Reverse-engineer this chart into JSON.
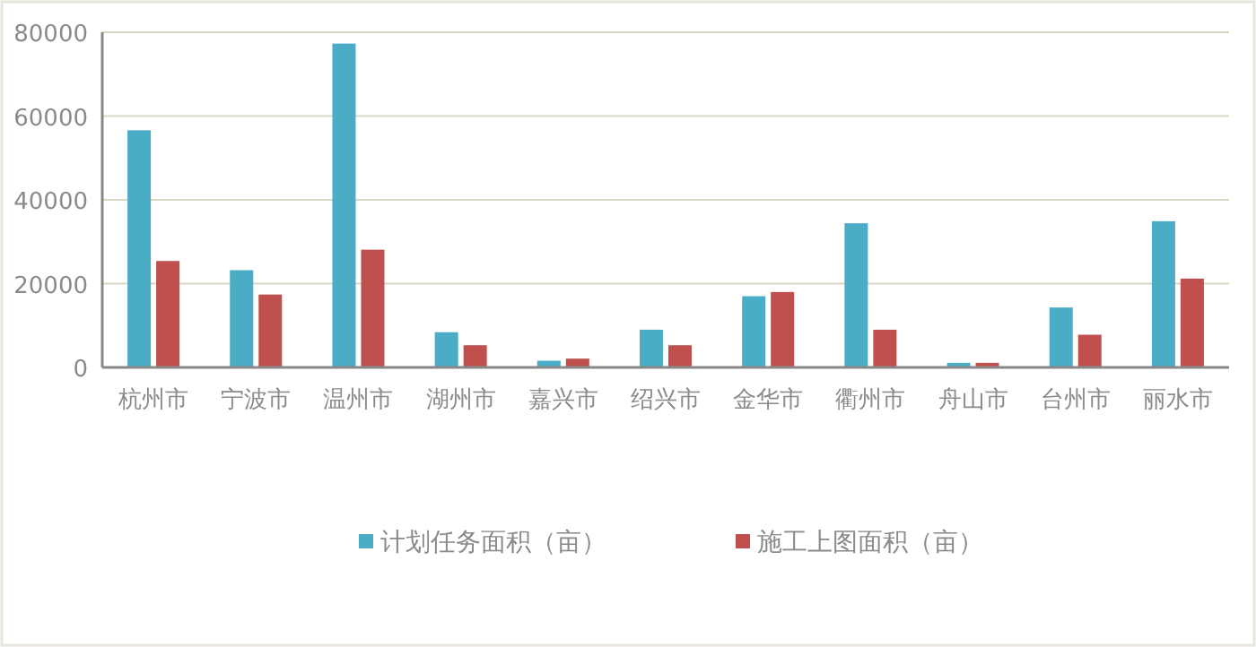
{
  "chart_data": {
    "type": "bar",
    "categories": [
      "杭州市",
      "宁波市",
      "温州市",
      "湖州市",
      "嘉兴市",
      "绍兴市",
      "金华市",
      "衢州市",
      "舟山市",
      "台州市",
      "丽水市"
    ],
    "series": [
      {
        "name": "计划任务面积（亩）",
        "color": "#4bacc6",
        "values": [
          56600,
          23200,
          77300,
          8400,
          1600,
          9000,
          17000,
          34400,
          1100,
          14300,
          34900
        ]
      },
      {
        "name": "施工上图面积（亩）",
        "color": "#c0504d",
        "values": [
          25400,
          17400,
          28100,
          5300,
          2100,
          5300,
          18000,
          9000,
          1100,
          7800,
          21200
        ]
      }
    ],
    "ylim": [
      0,
      80000
    ],
    "yticks": [
      0,
      20000,
      40000,
      60000,
      80000
    ],
    "grid": "y",
    "legend": "bottom"
  }
}
